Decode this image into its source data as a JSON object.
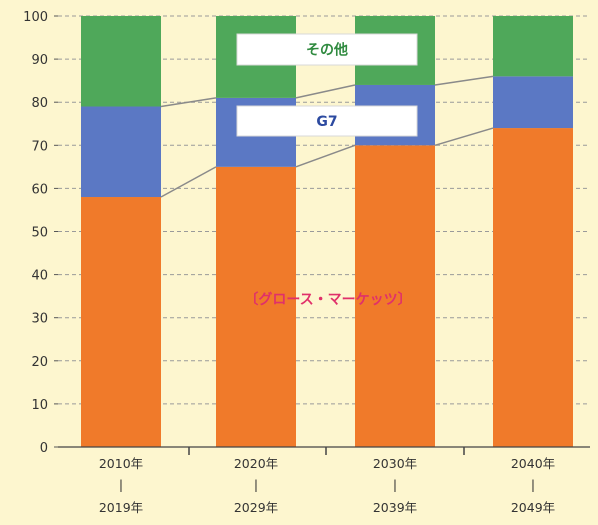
{
  "chart_data": {
    "type": "bar",
    "stacked": true,
    "title": "",
    "xlabel": "",
    "ylabel": "",
    "ylim": [
      0,
      100
    ],
    "yticks": [
      0,
      10,
      20,
      30,
      40,
      50,
      60,
      70,
      80,
      90,
      100
    ],
    "grid": true,
    "categories": [
      {
        "top": "2010年",
        "mid": "|",
        "bottom": "2019年"
      },
      {
        "top": "2020年",
        "mid": "|",
        "bottom": "2029年"
      },
      {
        "top": "2030年",
        "mid": "|",
        "bottom": "2039年"
      },
      {
        "top": "2040年",
        "mid": "|",
        "bottom": "2049年"
      }
    ],
    "series": [
      {
        "name": "グロース・マーケッツ",
        "label": "〔グロース・マーケッツ〕",
        "color": "#f07a2a",
        "values": [
          58,
          65,
          70,
          74
        ]
      },
      {
        "name": "G7",
        "label": "G7",
        "color": "#5b78c4",
        "values": [
          21,
          16,
          14,
          12
        ]
      },
      {
        "name": "その他",
        "label": "その他",
        "color": "#4fa85a",
        "values": [
          21,
          19,
          16,
          14
        ]
      }
    ],
    "label_text_colors": {
      "グロース・マーケッツ": "#e0306a",
      "G7": "#2c4aa0",
      "その他": "#2f8a3f"
    }
  }
}
